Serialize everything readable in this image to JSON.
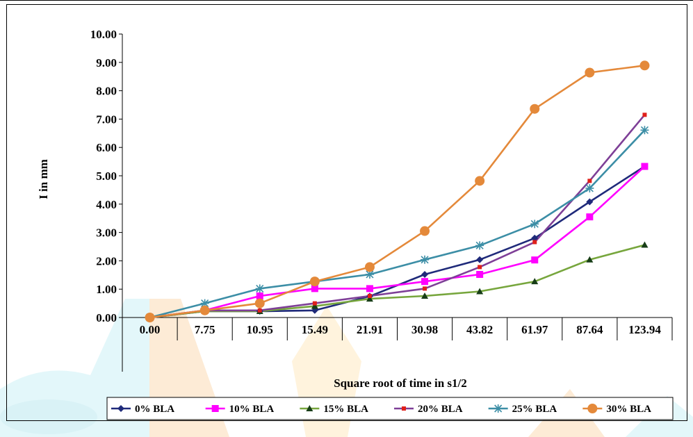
{
  "chart_data": {
    "type": "line",
    "title": "",
    "xlabel": "Square root of time in s1/2",
    "ylabel": "I in mm",
    "categories": [
      "0.00",
      "7.75",
      "10.95",
      "15.49",
      "21.91",
      "30.98",
      "43.82",
      "61.97",
      "87.64",
      "123.94"
    ],
    "yticks": [
      "0.00",
      "1.00",
      "2.00",
      "3.00",
      "4.00",
      "5.00",
      "6.00",
      "7.00",
      "8.00",
      "9.00",
      "10.00"
    ],
    "ylim": [
      0,
      10
    ],
    "grid": false,
    "legend_position": "bottom",
    "series": [
      {
        "name": "0% BLA",
        "color": "#1f2a7a",
        "marker": "diamond",
        "values": [
          0.0,
          0.22,
          0.22,
          0.25,
          0.75,
          1.52,
          2.04,
          2.8,
          4.08,
          5.33
        ]
      },
      {
        "name": "10% BLA",
        "color": "#ff00ff",
        "marker": "square",
        "values": [
          0.0,
          0.25,
          0.76,
          1.02,
          1.02,
          1.27,
          1.52,
          2.03,
          3.55,
          5.33
        ]
      },
      {
        "name": "15% BLA",
        "color": "#77a63d",
        "marker": "triangle",
        "values": [
          0.0,
          0.22,
          0.22,
          0.4,
          0.66,
          0.76,
          0.92,
          1.27,
          2.04,
          2.56
        ]
      },
      {
        "name": "20% BLA",
        "color": "#7e3f97",
        "marker": "smallsquare",
        "values": [
          0.0,
          0.25,
          0.25,
          0.5,
          0.76,
          1.02,
          1.78,
          2.66,
          4.82,
          7.15
        ]
      },
      {
        "name": "25% BLA",
        "color": "#3c8ea6",
        "marker": "asterisk",
        "values": [
          0.0,
          0.5,
          1.02,
          1.27,
          1.52,
          2.04,
          2.54,
          3.3,
          4.56,
          6.61
        ]
      },
      {
        "name": "30% BLA",
        "color": "#e4893a",
        "marker": "circle",
        "values": [
          0.0,
          0.25,
          0.5,
          1.27,
          1.78,
          3.05,
          4.82,
          7.36,
          8.64,
          8.89
        ]
      }
    ]
  }
}
